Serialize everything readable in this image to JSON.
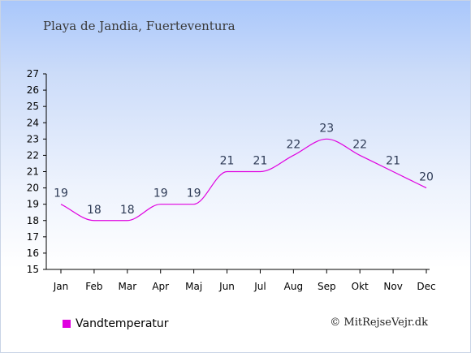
{
  "chart_data": {
    "type": "line",
    "title": "Playa de Jandia, Fuerteventura",
    "categories": [
      "Jan",
      "Feb",
      "Mar",
      "Apr",
      "Maj",
      "Jun",
      "Jul",
      "Aug",
      "Sep",
      "Okt",
      "Nov",
      "Dec"
    ],
    "series": [
      {
        "name": "Vandtemperatur",
        "values": [
          19,
          18,
          18,
          19,
          19,
          21,
          21,
          22,
          23,
          22,
          21,
          20
        ]
      }
    ],
    "ylim": [
      15,
      27
    ],
    "yticks": [
      15,
      16,
      17,
      18,
      19,
      20,
      21,
      22,
      23,
      24,
      25,
      26,
      27
    ],
    "grid": false,
    "legend": "bottom-left",
    "color": "#e000e0"
  },
  "copyright": "© MitRejseVejr.dk"
}
